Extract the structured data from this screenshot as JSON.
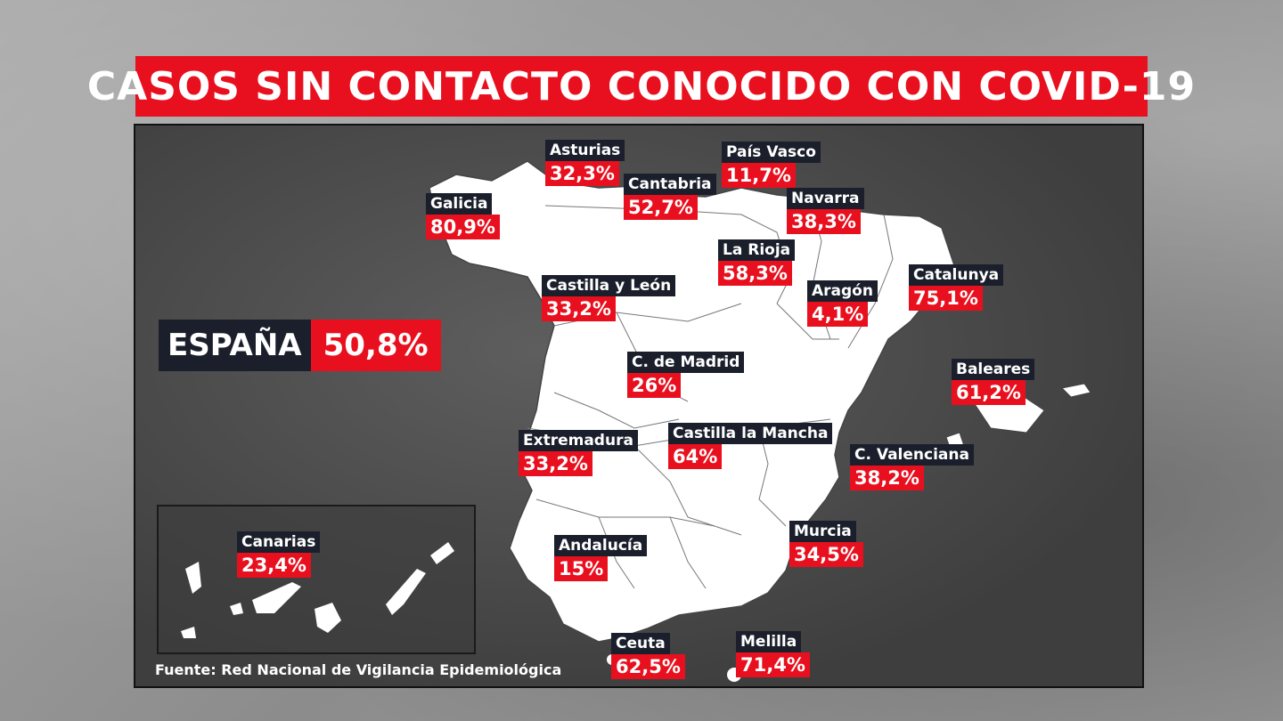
{
  "title": "CASOS SIN CONTACTO CONOCIDO CON COVID-19",
  "total": {
    "name": "ESPAÑA",
    "value": "50,8%"
  },
  "regions": [
    {
      "id": "asturias",
      "name": "Asturias",
      "value": "32,3%"
    },
    {
      "id": "pais-vasco",
      "name": "País Vasco",
      "value": "11,7%"
    },
    {
      "id": "cantabria",
      "name": "Cantabria",
      "value": "52,7%"
    },
    {
      "id": "galicia",
      "name": "Galicia",
      "value": "80,9%"
    },
    {
      "id": "navarra",
      "name": "Navarra",
      "value": "38,3%"
    },
    {
      "id": "la-rioja",
      "name": "La Rioja",
      "value": "58,3%"
    },
    {
      "id": "catalunya",
      "name": "Catalunya",
      "value": "75,1%"
    },
    {
      "id": "castilla-y-leon",
      "name": "Castilla y León",
      "value": "33,2%"
    },
    {
      "id": "aragon",
      "name": "Aragón",
      "value": "4,1%"
    },
    {
      "id": "c-de-madrid",
      "name": "C. de Madrid",
      "value": "26%"
    },
    {
      "id": "baleares",
      "name": "Baleares",
      "value": "61,2%"
    },
    {
      "id": "extremadura",
      "name": "Extremadura",
      "value": "33,2%"
    },
    {
      "id": "castilla-la-mancha",
      "name": "Castilla la Mancha",
      "value": "64%"
    },
    {
      "id": "c-valenciana",
      "name": "C. Valenciana",
      "value": "38,2%"
    },
    {
      "id": "canarias",
      "name": "Canarias",
      "value": "23,4%"
    },
    {
      "id": "andalucia",
      "name": "Andalucía",
      "value": "15%"
    },
    {
      "id": "murcia",
      "name": "Murcia",
      "value": "34,5%"
    },
    {
      "id": "ceuta",
      "name": "Ceuta",
      "value": "62,5%"
    },
    {
      "id": "melilla",
      "name": "Melilla",
      "value": "71,4%"
    }
  ],
  "source": "Fuente: Red Nacional de Vigilancia Epidemiológica",
  "colors": {
    "accent_red": "#e8101e",
    "label_dark": "#1a1f2b",
    "map_land": "#ffffff"
  }
}
